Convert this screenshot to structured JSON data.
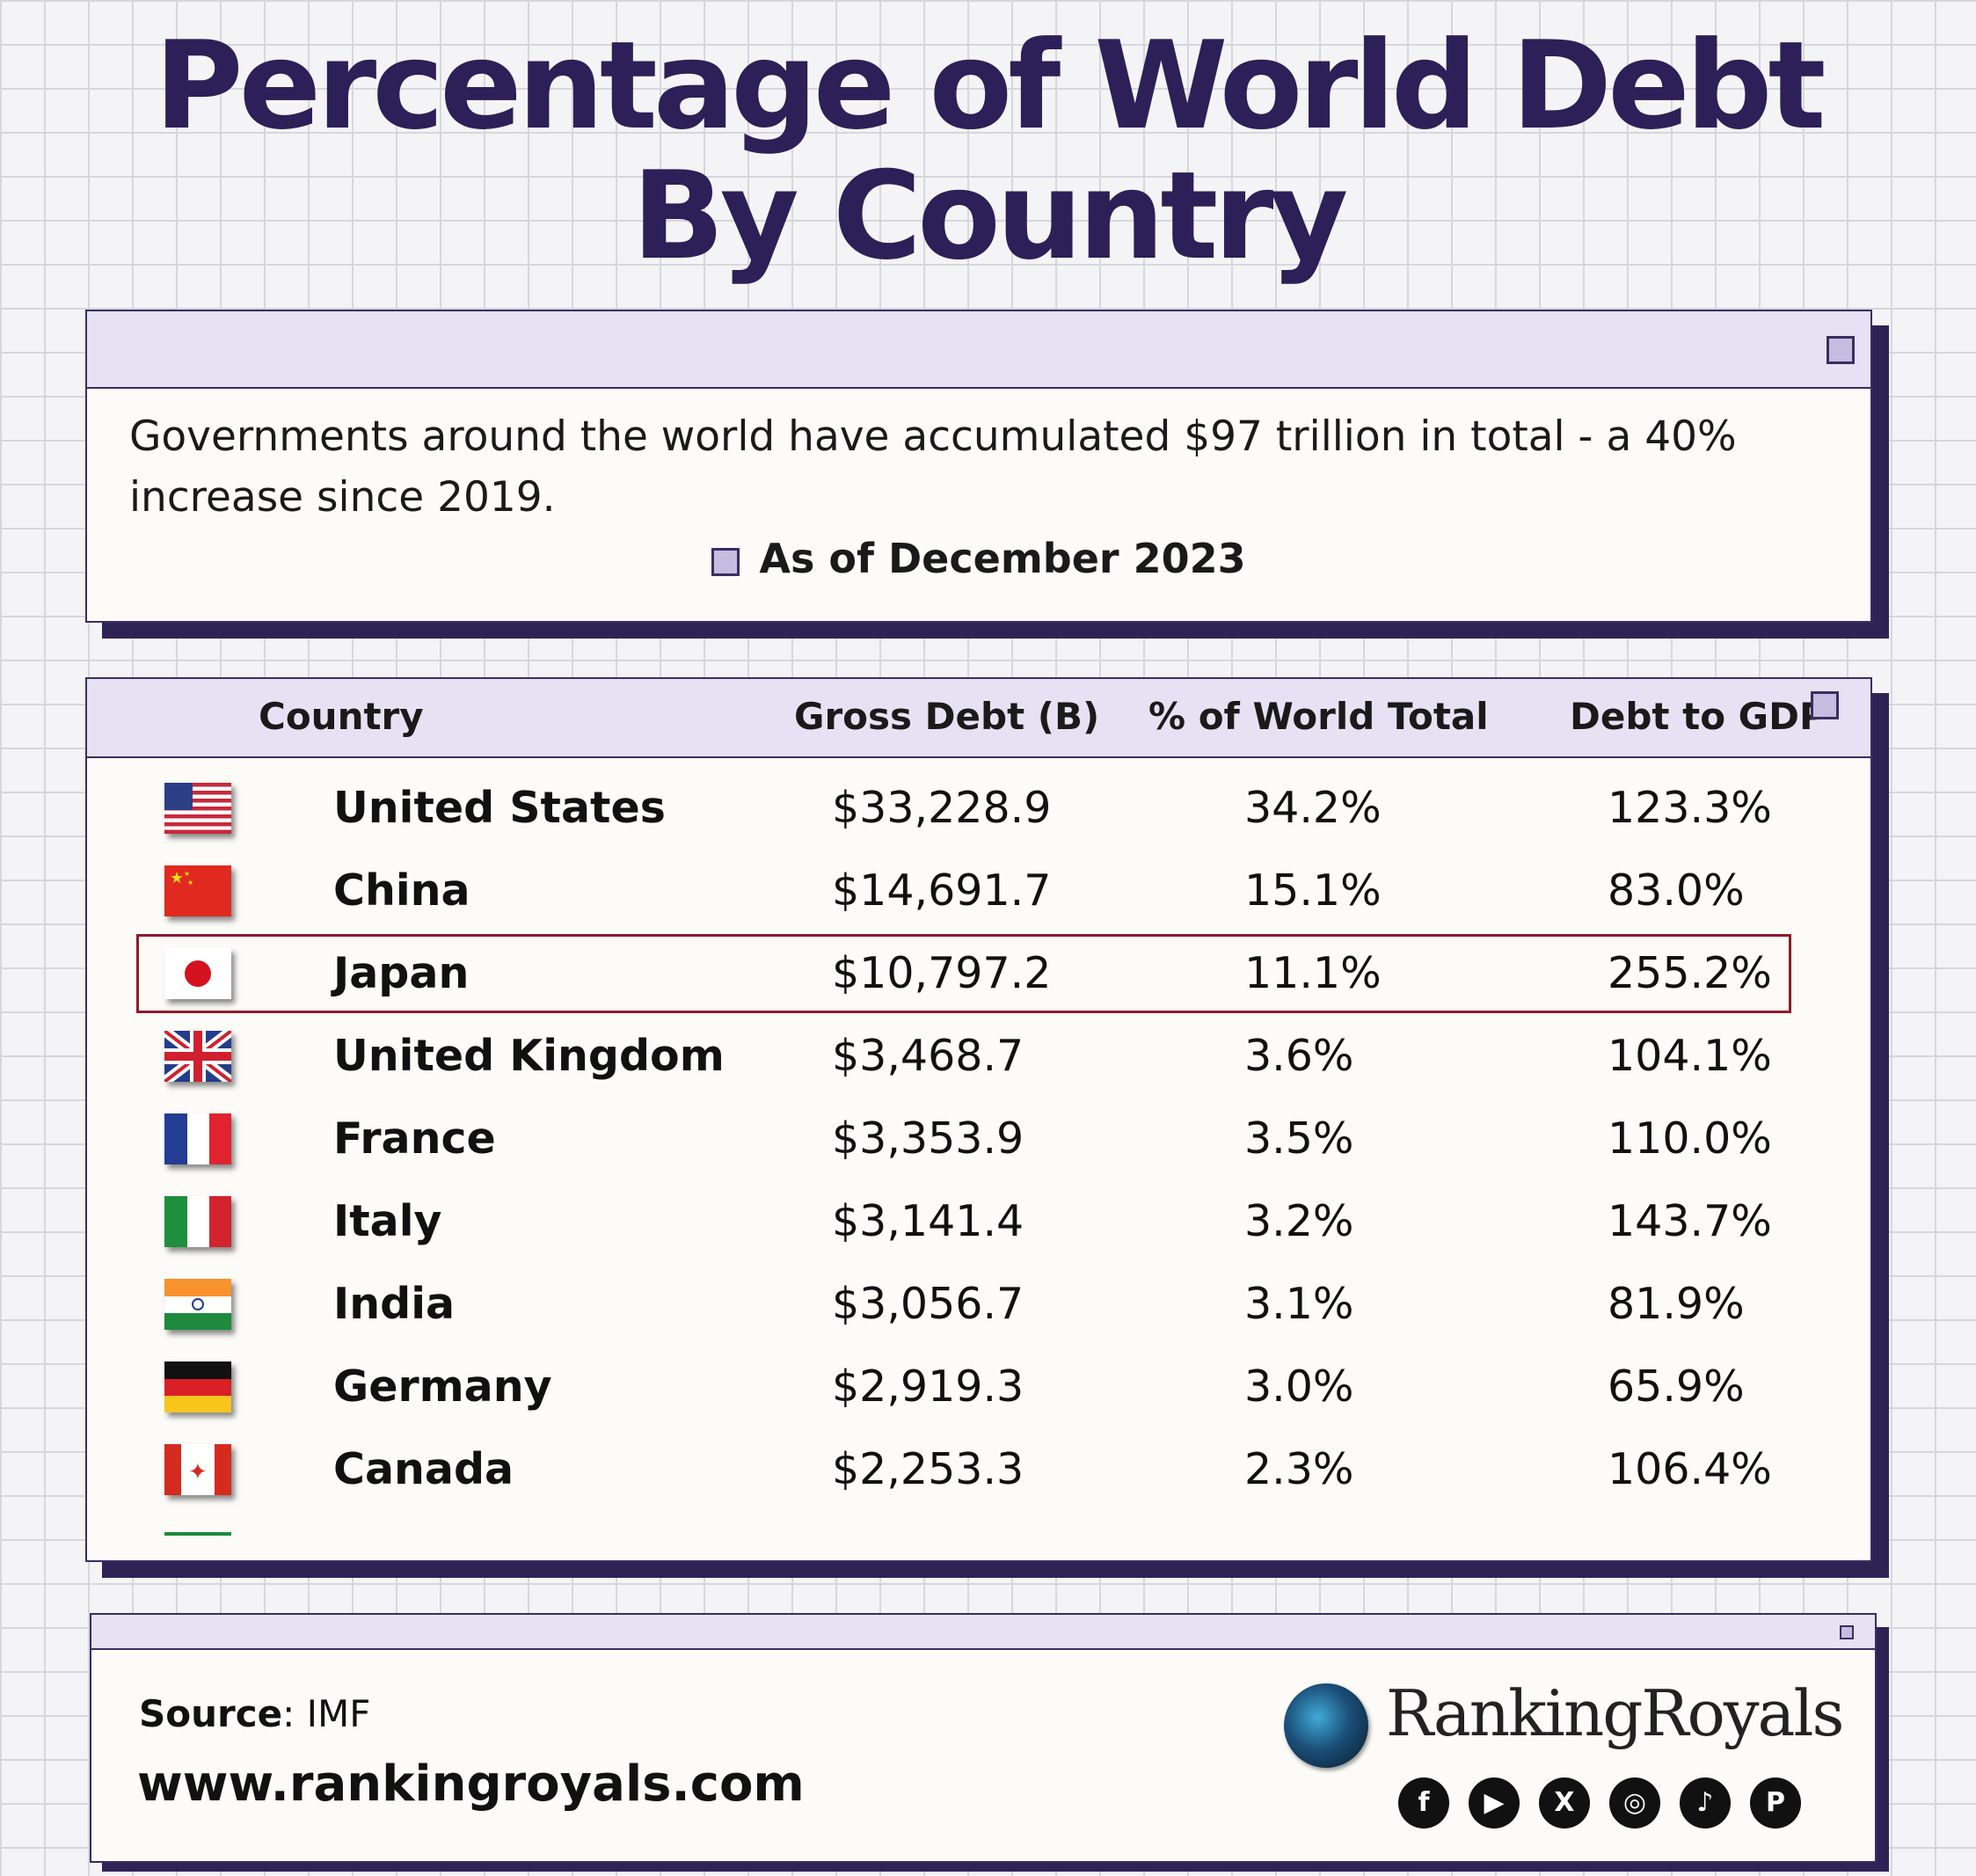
{
  "title_line1": "Percentage of  World Debt",
  "title_line2": "By Country",
  "intro": {
    "text": "Governments around the world have accumulated $97 trillion in total - a 40% increase since 2019.",
    "as_of": "As of December 2023"
  },
  "table": {
    "headers": [
      "Country",
      "Gross Debt (B)",
      "% of World Total",
      "Debt to GDP"
    ],
    "rows": [
      {
        "flag": "us-flag-icon",
        "country": "United States",
        "gross_debt": "$33,228.9",
        "world_pct": "34.2%",
        "debt_gdp": "123.3%"
      },
      {
        "flag": "china-flag-icon",
        "country": "China",
        "gross_debt": "$14,691.7",
        "world_pct": "15.1%",
        "debt_gdp": "83.0%"
      },
      {
        "flag": "japan-flag-icon",
        "country": "Japan",
        "gross_debt": "$10,797.2",
        "world_pct": "11.1%",
        "debt_gdp": "255.2%"
      },
      {
        "flag": "uk-flag-icon",
        "country": "United Kingdom",
        "gross_debt": "$3,468.7",
        "world_pct": "3.6%",
        "debt_gdp": "104.1%"
      },
      {
        "flag": "france-flag-icon",
        "country": "France",
        "gross_debt": "$3,353.9",
        "world_pct": "3.5%",
        "debt_gdp": "110.0%"
      },
      {
        "flag": "italy-flag-icon",
        "country": "Italy",
        "gross_debt": "$3,141.4",
        "world_pct": "3.2%",
        "debt_gdp": "143.7%"
      },
      {
        "flag": "india-flag-icon",
        "country": "India",
        "gross_debt": "$3,056.7",
        "world_pct": "3.1%",
        "debt_gdp": "81.9%"
      },
      {
        "flag": "germany-flag-icon",
        "country": "Germany",
        "gross_debt": "$2,919.3",
        "world_pct": "3.0%",
        "debt_gdp": "65.9%"
      },
      {
        "flag": "canada-flag-icon",
        "country": "Canada",
        "gross_debt": "$2,253.3",
        "world_pct": "2.3%",
        "debt_gdp": "106.4%"
      }
    ],
    "highlighted_country": "Japan"
  },
  "footer": {
    "source_label": "Source",
    "source_value": ": IMF",
    "url": "www.rankingroyals.com",
    "brand": "RankingRoyals",
    "social_icons": [
      "facebook-icon",
      "youtube-icon",
      "x-icon",
      "instagram-icon",
      "tiktok-icon",
      "pinterest-icon"
    ]
  },
  "colors": {
    "title": "#2d1f57",
    "window_bar": "#e6e2f3",
    "shadow": "#2f2356",
    "highlight_border": "#8e1b2c",
    "square": "#c4bddf"
  }
}
